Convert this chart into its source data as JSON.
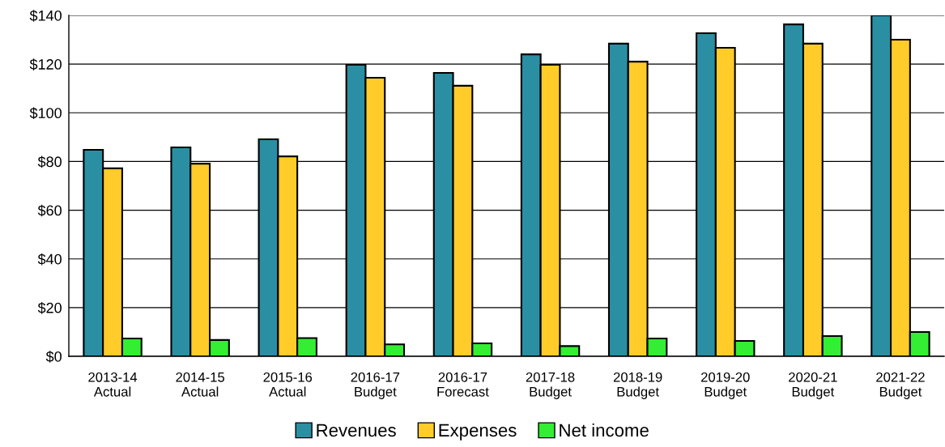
{
  "chart_data": {
    "type": "bar",
    "categories": [
      "2013-14\nActual",
      "2014-15\nActual",
      "2015-16\nActual",
      "2016-17\nBudget",
      "2016-17\nForecast",
      "2017-18\nBudget",
      "2018-19\nBudget",
      "2019-20\nBudget",
      "2020-21\nBudget",
      "2021-22\nBudget"
    ],
    "series": [
      {
        "name": "Revenues",
        "color": "#2a8fa3",
        "values": [
          84.8,
          85.8,
          89.1,
          119.7,
          116.4,
          124,
          128.4,
          132.7,
          136.3,
          140
        ]
      },
      {
        "name": "Expenses",
        "color": "#ffcc29",
        "values": [
          77.2,
          79.1,
          82.1,
          114.4,
          111.1,
          119.7,
          121,
          126.7,
          128.4,
          130
        ]
      },
      {
        "name": "Net income",
        "color": "#33ee33",
        "values": [
          7.3,
          6.7,
          7.5,
          4.9,
          5.3,
          4.2,
          7.3,
          6.3,
          8.3,
          10
        ]
      }
    ],
    "ylim": [
      0,
      140
    ],
    "yticks": [
      {
        "value": 0,
        "label": "$0"
      },
      {
        "value": 20,
        "label": "$20"
      },
      {
        "value": 40,
        "label": "$40"
      },
      {
        "value": 60,
        "label": "$60"
      },
      {
        "value": 80,
        "label": "$80"
      },
      {
        "value": 100,
        "label": "$100"
      },
      {
        "value": 120,
        "label": "$120"
      },
      {
        "value": 140,
        "label": "$140"
      }
    ],
    "grid": "y",
    "legend": "bottom"
  }
}
